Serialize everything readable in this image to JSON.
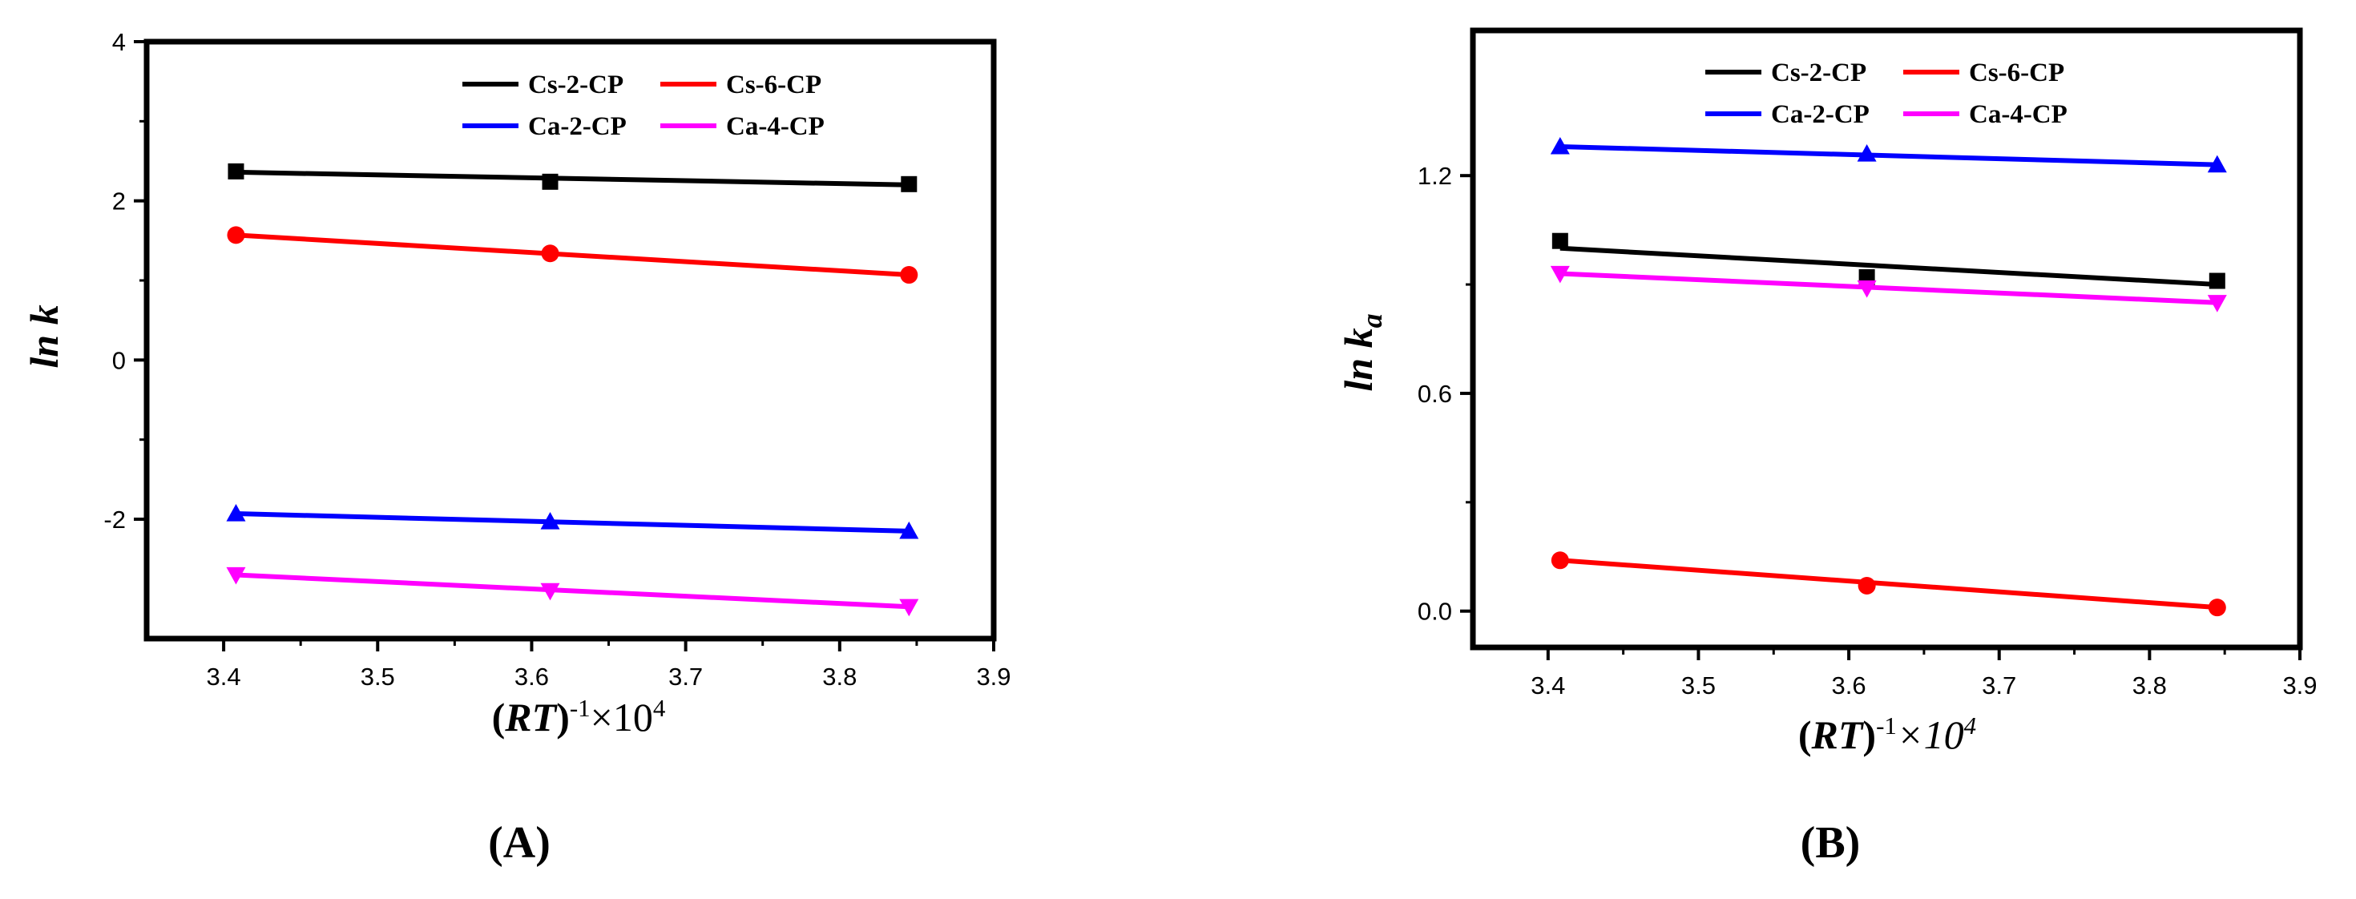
{
  "chart_data": [
    {
      "type": "scatter",
      "panel_label": "A",
      "ylabel_main": "ln k",
      "ylabel_sub": "",
      "xlabel_main": "RT",
      "xlabel_exp": "-1",
      "xlabel_tail": "×10",
      "xlabel_tail_exp": "4",
      "xlim": [
        3.35,
        3.9
      ],
      "ylim": [
        -3.5,
        4
      ],
      "x_ticks": [
        3.4,
        3.5,
        3.6,
        3.7,
        3.8,
        3.9
      ],
      "x_tick_labels": [
        "3.4",
        "3.5",
        "3.6",
        "3.7",
        "3.8",
        "3.9"
      ],
      "y_ticks": [
        -2,
        0,
        2,
        4
      ],
      "y_tick_labels": [
        "-2",
        "0",
        "2",
        "4"
      ],
      "legend_position": "top-right",
      "series": [
        {
          "name": "Cs-2-CP",
          "color": "#000000",
          "marker": "square",
          "x": [
            3.408,
            3.612,
            3.845
          ],
          "y": [
            2.37,
            2.24,
            2.21
          ],
          "fit": [
            2.36,
            2.2
          ]
        },
        {
          "name": "Cs-6-CP",
          "color": "#ff0000",
          "marker": "circle",
          "x": [
            3.408,
            3.612,
            3.845
          ],
          "y": [
            1.57,
            1.34,
            1.07
          ],
          "fit": [
            1.57,
            1.07
          ]
        },
        {
          "name": "Ca-2-CP",
          "color": "#0000ff",
          "marker": "triangle-up",
          "x": [
            3.408,
            3.612,
            3.845
          ],
          "y": [
            -1.93,
            -2.03,
            -2.15
          ],
          "fit": [
            -1.93,
            -2.15
          ]
        },
        {
          "name": "Ca-4-CP",
          "color": "#ff00ff",
          "marker": "triangle-down",
          "x": [
            3.408,
            3.612,
            3.845
          ],
          "y": [
            -2.7,
            -2.9,
            -3.1
          ],
          "fit": [
            -2.7,
            -3.1
          ]
        }
      ]
    },
    {
      "type": "scatter",
      "panel_label": "B",
      "ylabel_main": "ln k",
      "ylabel_sub": "a",
      "xlabel_main": "RT",
      "xlabel_exp": "-1",
      "xlabel_tail": "×10",
      "xlabel_tail_exp": "4",
      "xlim": [
        3.35,
        3.9
      ],
      "ylim": [
        -0.1,
        1.6
      ],
      "x_ticks": [
        3.4,
        3.5,
        3.6,
        3.7,
        3.8,
        3.9
      ],
      "x_tick_labels": [
        "3.4",
        "3.5",
        "3.6",
        "3.7",
        "3.8",
        "3.9"
      ],
      "y_ticks": [
        0.0,
        0.6,
        1.2
      ],
      "y_tick_labels": [
        "0.0",
        "0.6",
        "1.2"
      ],
      "legend_position": "top",
      "series": [
        {
          "name": "Cs-2-CP",
          "color": "#000000",
          "marker": "square",
          "x": [
            3.408,
            3.612,
            3.845
          ],
          "y": [
            1.02,
            0.92,
            0.91
          ],
          "fit": [
            1.0,
            0.9
          ]
        },
        {
          "name": "Cs-6-CP",
          "color": "#ff0000",
          "marker": "circle",
          "x": [
            3.408,
            3.612,
            3.845
          ],
          "y": [
            0.14,
            0.07,
            0.01
          ],
          "fit": [
            0.14,
            0.01
          ]
        },
        {
          "name": "Ca-2-CP",
          "color": "#0000ff",
          "marker": "triangle-up",
          "x": [
            3.408,
            3.612,
            3.845
          ],
          "y": [
            1.28,
            1.26,
            1.23
          ],
          "fit": [
            1.28,
            1.23
          ]
        },
        {
          "name": "Ca-4-CP",
          "color": "#ff00ff",
          "marker": "triangle-down",
          "x": [
            3.408,
            3.612,
            3.845
          ],
          "y": [
            0.93,
            0.89,
            0.85
          ],
          "fit": [
            0.93,
            0.85
          ]
        }
      ]
    }
  ]
}
